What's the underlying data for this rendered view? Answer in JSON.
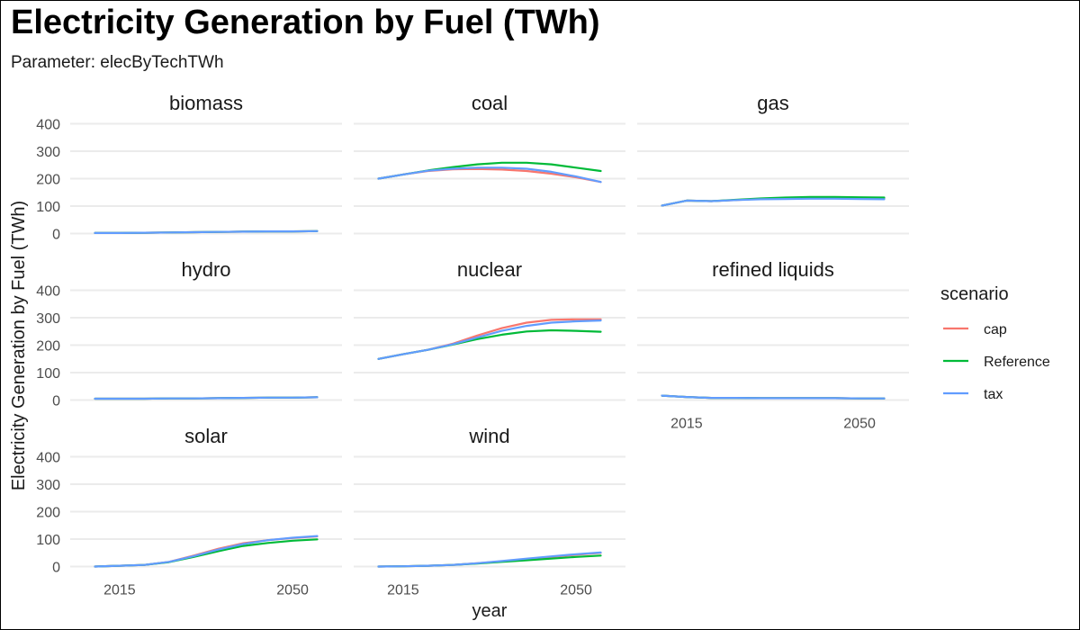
{
  "title": "Electricity Generation by Fuel (TWh)",
  "subtitle": "Parameter: elecByTechTWh",
  "chart_data": {
    "type": "line",
    "xlabel": "year",
    "ylabel": "Electricity Generation by Fuel (TWh)",
    "xlim": [
      2005,
      2060
    ],
    "ylim": [
      0,
      400
    ],
    "x_ticks": [
      2015,
      2050
    ],
    "y_ticks": [
      0,
      100,
      200,
      300,
      400
    ],
    "grid": true,
    "legend": {
      "title": "scenario",
      "position": "right",
      "entries": [
        {
          "name": "cap",
          "color": "#F8766D"
        },
        {
          "name": "Reference",
          "color": "#00BA38"
        },
        {
          "name": "tax",
          "color": "#619CFF"
        }
      ]
    },
    "x": [
      2010,
      2015,
      2020,
      2025,
      2030,
      2035,
      2040,
      2045,
      2050,
      2055
    ],
    "facets": [
      {
        "name": "biomass",
        "series": [
          {
            "name": "cap",
            "values": [
              2,
              2,
              3,
              4,
              5,
              6,
              7,
              8,
              8,
              9
            ]
          },
          {
            "name": "Reference",
            "values": [
              2,
              2,
              3,
              4,
              5,
              6,
              7,
              8,
              8,
              9
            ]
          },
          {
            "name": "tax",
            "values": [
              2,
              2,
              3,
              4,
              5,
              6,
              7,
              8,
              8,
              9
            ]
          }
        ]
      },
      {
        "name": "coal",
        "series": [
          {
            "name": "cap",
            "values": [
              200,
              215,
              228,
              234,
              235,
              233,
              228,
              218,
              205,
              188
            ]
          },
          {
            "name": "Reference",
            "values": [
              200,
              215,
              230,
              242,
              252,
              258,
              258,
              252,
              240,
              228
            ]
          },
          {
            "name": "tax",
            "values": [
              200,
              215,
              229,
              236,
              240,
              240,
              236,
              225,
              208,
              188
            ]
          }
        ]
      },
      {
        "name": "gas",
        "series": [
          {
            "name": "cap",
            "values": [
              102,
              120,
              118,
              122,
              127,
              129,
              131,
              131,
              130,
              129
            ]
          },
          {
            "name": "Reference",
            "values": [
              102,
              120,
              118,
              123,
              128,
              131,
              133,
              133,
              132,
              131
            ]
          },
          {
            "name": "tax",
            "values": [
              102,
              120,
              118,
              122,
              125,
              126,
              127,
              127,
              126,
              125
            ]
          }
        ]
      },
      {
        "name": "hydro",
        "series": [
          {
            "name": "cap",
            "values": [
              5,
              5,
              5,
              6,
              6,
              7,
              8,
              9,
              9,
              10
            ]
          },
          {
            "name": "Reference",
            "values": [
              5,
              5,
              5,
              6,
              6,
              7,
              8,
              9,
              9,
              10
            ]
          },
          {
            "name": "tax",
            "values": [
              5,
              5,
              5,
              6,
              6,
              7,
              8,
              9,
              9,
              10
            ]
          }
        ]
      },
      {
        "name": "nuclear",
        "series": [
          {
            "name": "cap",
            "values": [
              150,
              167,
              183,
              205,
              235,
              262,
              282,
              292,
              294,
              294
            ]
          },
          {
            "name": "Reference",
            "values": [
              150,
              167,
              183,
              202,
              222,
              238,
              250,
              254,
              252,
              249
            ]
          },
          {
            "name": "tax",
            "values": [
              150,
              167,
              183,
              203,
              228,
              252,
              270,
              282,
              287,
              290
            ]
          }
        ]
      },
      {
        "name": "refined liquids",
        "series": [
          {
            "name": "cap",
            "values": [
              16,
              11,
              8,
              8,
              7,
              7,
              7,
              7,
              6,
              6
            ]
          },
          {
            "name": "Reference",
            "values": [
              16,
              11,
              8,
              8,
              7,
              7,
              7,
              7,
              6,
              6
            ]
          },
          {
            "name": "tax",
            "values": [
              16,
              11,
              8,
              8,
              7,
              7,
              7,
              7,
              6,
              6
            ]
          }
        ]
      },
      {
        "name": "solar",
        "series": [
          {
            "name": "cap",
            "values": [
              0,
              3,
              6,
              17,
              40,
              65,
              85,
              96,
              104,
              110
            ]
          },
          {
            "name": "Reference",
            "values": [
              0,
              3,
              6,
              16,
              35,
              56,
              75,
              86,
              94,
              99
            ]
          },
          {
            "name": "tax",
            "values": [
              0,
              3,
              6,
              17,
              38,
              62,
              82,
              96,
              105,
              111
            ]
          }
        ]
      },
      {
        "name": "wind",
        "series": [
          {
            "name": "cap",
            "values": [
              0,
              1,
              3,
              6,
              12,
              19,
              27,
              35,
              43,
              50
            ]
          },
          {
            "name": "Reference",
            "values": [
              0,
              1,
              3,
              6,
              11,
              17,
              23,
              29,
              35,
              40
            ]
          },
          {
            "name": "tax",
            "values": [
              0,
              1,
              3,
              6,
              12,
              20,
              29,
              37,
              45,
              51
            ]
          }
        ]
      }
    ]
  }
}
